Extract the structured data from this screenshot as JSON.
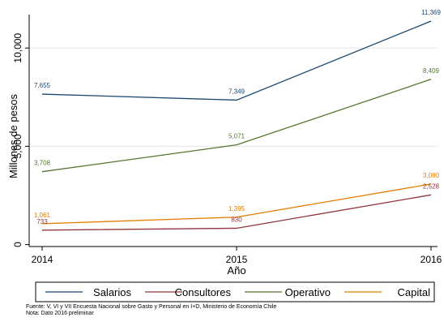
{
  "chart_data": {
    "type": "line",
    "title": "",
    "xlabel": "Año",
    "ylabel": "Millones de pesos",
    "x": [
      2014,
      2015,
      2016
    ],
    "x_tick_labels": [
      "2014",
      "2015",
      "2016"
    ],
    "y_ticks": [
      0,
      5000,
      10000
    ],
    "y_tick_labels": [
      "0",
      "5,000",
      "10,000"
    ],
    "ylim": [
      -100,
      11700
    ],
    "grid": "horizontal",
    "legend_placement": "bottom",
    "series": [
      {
        "name": "Salarios",
        "color": "#1a476f",
        "values": [
          7655,
          7349,
          11369
        ],
        "labels": [
          "7,655",
          "7,349",
          "11,369"
        ]
      },
      {
        "name": "Consultores",
        "color": "#90353b",
        "values": [
          733,
          830,
          2528
        ],
        "labels": [
          "733",
          "830",
          "2,528"
        ]
      },
      {
        "name": "Operativo",
        "color": "#55752f",
        "values": [
          3708,
          5071,
          8409
        ],
        "labels": [
          "3,708",
          "5,071",
          "8,409"
        ]
      },
      {
        "name": "Capital",
        "color": "#e37e00",
        "values": [
          1061,
          1395,
          3080
        ],
        "labels": [
          "1,061",
          "1,395",
          "3,080"
        ]
      }
    ]
  },
  "footnotes": {
    "source": "Fuente: V, VI y VII Encuesta Nacional sobre Gasto y Personal en I+D, Ministerio de Economía Chile",
    "note": "Nota: Dato 2016 preliminar"
  }
}
